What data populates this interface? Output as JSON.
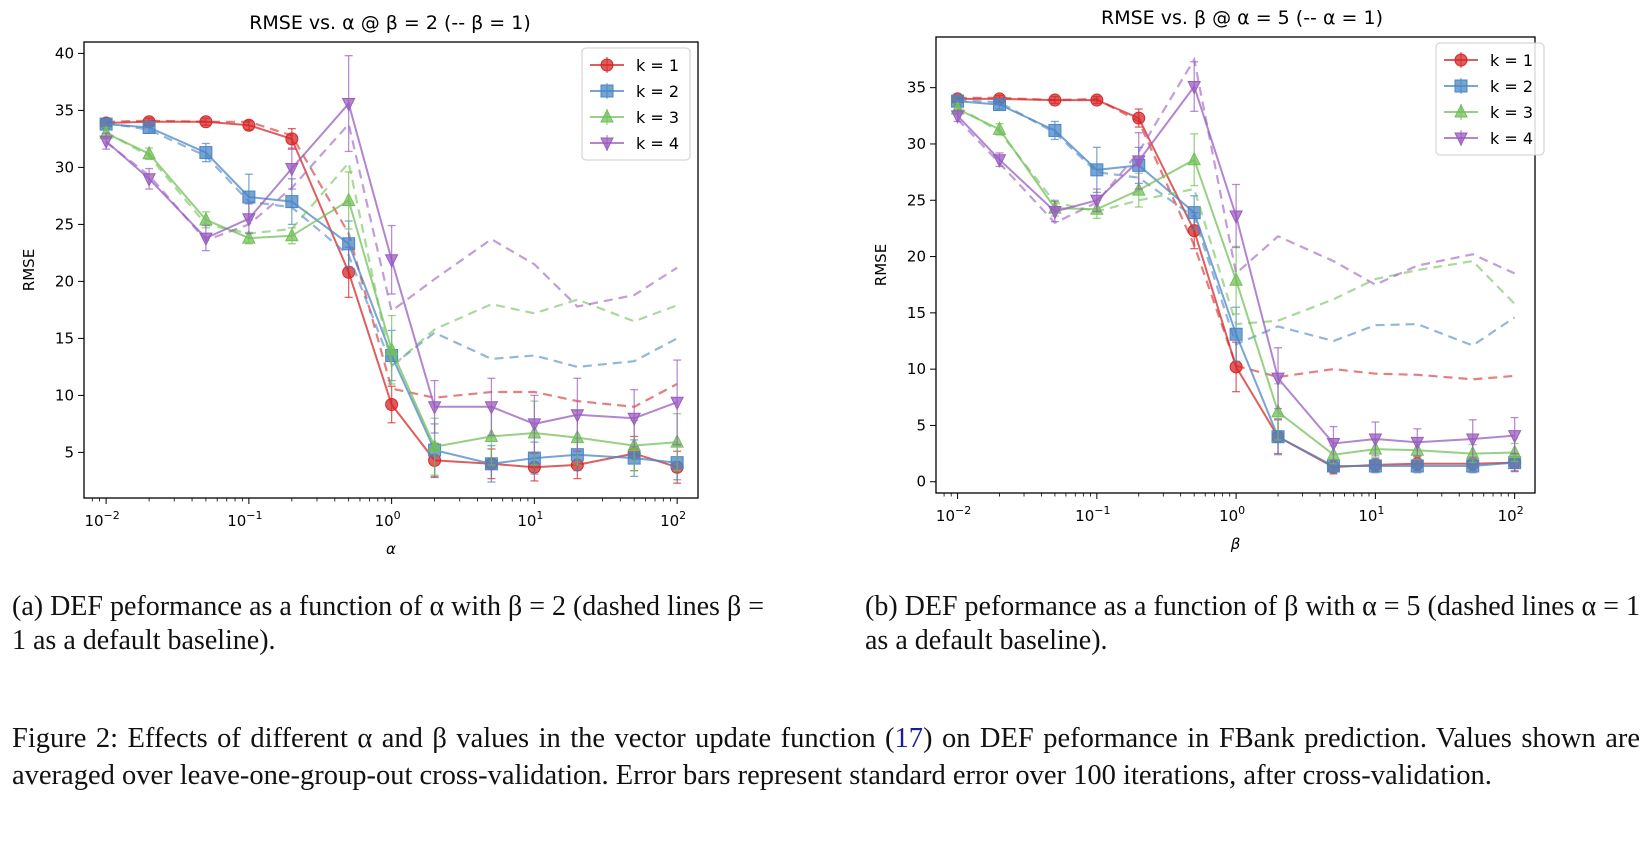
{
  "colors": {
    "k1": "#d62728",
    "k2": "#4a86c5",
    "k3": "#72c05a",
    "k4": "#9a5cc0"
  },
  "captions": {
    "a": "(a) DEF peformance as a function of α with β = 2 (dashed lines β = 1 as a default baseline).",
    "b": "(b) DEF peformance as a function of β with α = 5 (dashed lines α = 1 as a default baseline).",
    "figure_pre": "Figure 2: Effects of different α and β values in the vector update function (",
    "figure_ref": "17",
    "figure_post": ") on DEF peformance in FBank prediction. Values shown are averaged over leave-one-group-out cross-validation. Error bars represent standard error over 100 iterations, after cross-validation."
  },
  "chart_data": [
    {
      "type": "line",
      "title": "RMSE vs. α @ β = 2 (-- β = 1)",
      "xlabel": "α",
      "ylabel": "RMSE",
      "xscale": "log",
      "xlim": [
        0.007,
        140
      ],
      "ylim": [
        1,
        41
      ],
      "xticks": [
        {
          "value": 0.01,
          "base": "10",
          "exp": "−2"
        },
        {
          "value": 0.1,
          "base": "10",
          "exp": "−1"
        },
        {
          "value": 1,
          "base": "10",
          "exp": "0"
        },
        {
          "value": 10,
          "base": "10",
          "exp": "1"
        },
        {
          "value": 100,
          "base": "10",
          "exp": "2"
        }
      ],
      "yticks": [
        5,
        10,
        15,
        20,
        25,
        30,
        35,
        40
      ],
      "x": [
        0.01,
        0.02,
        0.05,
        0.1,
        0.2,
        0.5,
        1,
        2,
        5,
        10,
        20,
        50,
        100
      ],
      "legend": "top-right",
      "series": [
        {
          "name": "k = 1",
          "color_key": "k1",
          "marker": "circle",
          "values": [
            33.9,
            34.0,
            34.0,
            33.7,
            32.5,
            20.8,
            9.2,
            4.3,
            4.0,
            3.7,
            3.9,
            4.9,
            3.7
          ],
          "errors": [
            0.4,
            0.3,
            0.3,
            0.4,
            0.9,
            2.2,
            1.6,
            1.5,
            1.3,
            1.2,
            1.2,
            1.5,
            1.4
          ],
          "baseline": [
            34.0,
            34.1,
            34.0,
            34.0,
            32.8,
            24.2,
            10.6,
            9.8,
            10.3,
            10.3,
            9.5,
            9.0,
            11.0
          ]
        },
        {
          "name": "k = 2",
          "color_key": "k2",
          "marker": "square",
          "values": [
            33.8,
            33.5,
            31.3,
            27.4,
            27.0,
            23.3,
            13.5,
            5.2,
            4.0,
            4.5,
            4.8,
            4.5,
            4.1
          ],
          "errors": [
            0.4,
            0.5,
            0.8,
            2.0,
            2.0,
            2.0,
            2.2,
            2.3,
            1.6,
            1.4,
            1.4,
            1.6,
            1.5
          ],
          "baseline": [
            33.9,
            33.3,
            31.0,
            27.0,
            26.5,
            22.3,
            12.6,
            15.5,
            13.2,
            13.5,
            12.5,
            13.0,
            15.0
          ]
        },
        {
          "name": "k = 3",
          "color_key": "k3",
          "marker": "triangle-up",
          "values": [
            33.0,
            31.2,
            25.4,
            23.8,
            24.0,
            27.1,
            14.0,
            5.5,
            6.4,
            6.7,
            6.3,
            5.6,
            5.9
          ],
          "errors": [
            0.5,
            0.5,
            0.7,
            0.5,
            0.7,
            2.5,
            3.0,
            2.5,
            2.5,
            2.8,
            2.4,
            2.2,
            2.5
          ],
          "baseline": [
            33.1,
            31.0,
            25.0,
            24.2,
            24.6,
            30.4,
            12.5,
            15.8,
            18.0,
            17.2,
            18.4,
            16.5,
            17.9
          ]
        },
        {
          "name": "k = 4",
          "color_key": "k4",
          "marker": "triangle-down",
          "values": [
            32.3,
            29.0,
            23.8,
            25.5,
            29.9,
            35.6,
            21.9,
            9.0,
            9.0,
            7.5,
            8.3,
            8.0,
            9.4
          ],
          "errors": [
            0.7,
            0.9,
            1.1,
            1.3,
            1.8,
            4.2,
            3.0,
            2.3,
            2.5,
            2.5,
            3.2,
            2.5,
            3.7
          ],
          "baseline": [
            32.2,
            29.3,
            23.6,
            25.0,
            28.2,
            33.8,
            17.4,
            20.2,
            23.7,
            21.5,
            17.8,
            18.8,
            21.2
          ]
        }
      ]
    },
    {
      "type": "line",
      "title": "RMSE vs. β @ α = 5 (-- α = 1)",
      "xlabel": "β",
      "ylabel": "RMSE",
      "xscale": "log",
      "xlim": [
        0.007,
        140
      ],
      "ylim": [
        -1,
        39.5
      ],
      "xticks": [
        {
          "value": 0.01,
          "base": "10",
          "exp": "−2"
        },
        {
          "value": 0.1,
          "base": "10",
          "exp": "−1"
        },
        {
          "value": 1,
          "base": "10",
          "exp": "0"
        },
        {
          "value": 10,
          "base": "10",
          "exp": "1"
        },
        {
          "value": 100,
          "base": "10",
          "exp": "2"
        }
      ],
      "yticks": [
        0,
        5,
        10,
        15,
        20,
        25,
        30,
        35
      ],
      "x": [
        0.01,
        0.02,
        0.05,
        0.1,
        0.2,
        0.5,
        1,
        2,
        5,
        10,
        20,
        50,
        100
      ],
      "legend": "top-right",
      "series": [
        {
          "name": "k = 1",
          "color_key": "k1",
          "marker": "circle",
          "values": [
            34.0,
            34.0,
            33.9,
            33.9,
            32.3,
            22.3,
            10.2,
            4.0,
            1.3,
            1.5,
            1.6,
            1.6,
            1.7
          ],
          "errors": [
            0.3,
            0.3,
            0.3,
            0.3,
            0.8,
            1.6,
            2.2,
            1.5,
            0.6,
            0.6,
            0.6,
            0.6,
            0.8
          ],
          "baseline": [
            34.1,
            34.1,
            33.9,
            34.0,
            32.0,
            21.0,
            10.3,
            9.3,
            10.0,
            9.6,
            9.5,
            9.1,
            9.4
          ]
        },
        {
          "name": "k = 2",
          "color_key": "k2",
          "marker": "square",
          "values": [
            33.8,
            33.5,
            31.2,
            27.7,
            28.1,
            23.9,
            13.1,
            4.0,
            1.4,
            1.4,
            1.4,
            1.4,
            1.7
          ],
          "errors": [
            0.4,
            0.4,
            0.8,
            2.0,
            1.6,
            1.5,
            2.4,
            1.6,
            0.6,
            0.6,
            0.6,
            0.6,
            0.7
          ],
          "baseline": [
            33.9,
            33.7,
            31.0,
            27.5,
            27.0,
            23.5,
            12.2,
            13.8,
            12.5,
            13.9,
            14.0,
            12.1,
            14.6
          ]
        },
        {
          "name": "k = 3",
          "color_key": "k3",
          "marker": "triangle-up",
          "values": [
            33.1,
            31.3,
            24.3,
            24.2,
            25.9,
            28.6,
            17.9,
            6.2,
            2.4,
            2.9,
            2.8,
            2.5,
            2.6
          ],
          "errors": [
            0.5,
            0.5,
            0.7,
            0.8,
            1.5,
            2.3,
            3.0,
            2.5,
            0.8,
            0.8,
            0.8,
            0.8,
            0.8
          ],
          "baseline": [
            33.3,
            31.1,
            24.8,
            24.0,
            25.0,
            26.0,
            14.0,
            14.3,
            16.2,
            18.0,
            18.8,
            19.6,
            15.8
          ]
        },
        {
          "name": "k = 4",
          "color_key": "k4",
          "marker": "triangle-down",
          "values": [
            32.5,
            28.6,
            24.0,
            25.0,
            28.5,
            35.1,
            23.6,
            9.2,
            3.4,
            3.8,
            3.5,
            3.8,
            4.1
          ],
          "errors": [
            0.5,
            0.6,
            0.9,
            1.0,
            2.5,
            2.2,
            2.8,
            2.7,
            1.5,
            1.5,
            1.2,
            1.7,
            1.6
          ],
          "baseline": [
            32.2,
            28.3,
            23.0,
            24.8,
            29.3,
            37.5,
            18.5,
            21.8,
            19.6,
            17.5,
            19.2,
            20.2,
            18.5
          ]
        }
      ]
    }
  ]
}
